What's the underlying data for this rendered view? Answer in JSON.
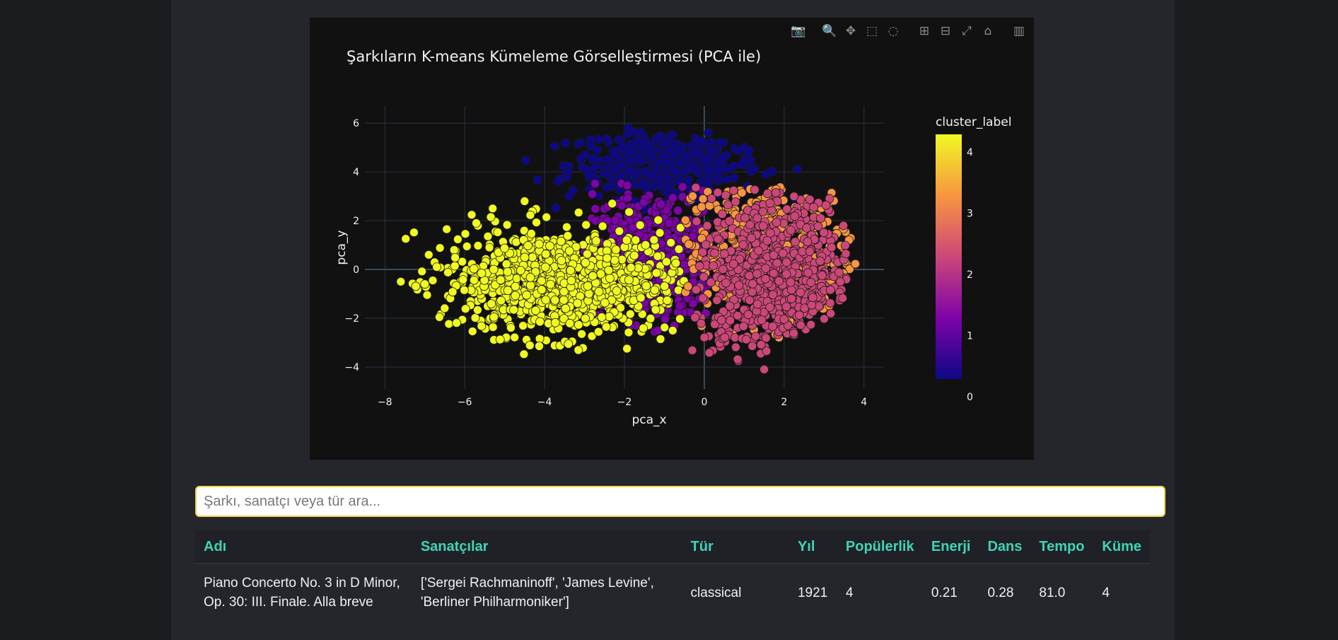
{
  "plot": {
    "title": "Şarkıların K-means Kümeleme Görselleştirmesi (PCA ile)",
    "modebar": [
      {
        "name": "camera-icon",
        "glyph": "📷"
      },
      {
        "name": "zoom-icon",
        "glyph": "🔍"
      },
      {
        "name": "pan-icon",
        "glyph": "✥"
      },
      {
        "name": "box-select-icon",
        "glyph": "⬚"
      },
      {
        "name": "lasso-select-icon",
        "glyph": "◌"
      },
      {
        "name": "zoom-in-icon",
        "glyph": "⊞"
      },
      {
        "name": "zoom-out-icon",
        "glyph": "⊟"
      },
      {
        "name": "autoscale-icon",
        "glyph": "⤢"
      },
      {
        "name": "reset-axes-icon",
        "glyph": "⌂"
      },
      {
        "name": "plotly-logo-icon",
        "glyph": "▥"
      }
    ]
  },
  "chart_data": {
    "type": "scatter",
    "title": "Şarkıların K-means Kümeleme Görselleştirmesi (PCA ile)",
    "xlabel": "pca_x",
    "ylabel": "pca_y",
    "xlim": [
      -8.5,
      4.5
    ],
    "ylim": [
      -4.9,
      6.7
    ],
    "xticks": [
      -8,
      -6,
      -4,
      -2,
      0,
      2,
      4
    ],
    "yticks": [
      -4,
      -2,
      0,
      2,
      4,
      6
    ],
    "xtick_labels": [
      "−8",
      "−6",
      "−4",
      "−2",
      "0",
      "2",
      "4"
    ],
    "ytick_labels": [
      "−4",
      "−2",
      "0",
      "2",
      "4",
      "6"
    ],
    "grid": true,
    "colorbar": {
      "title": "cluster_label",
      "range": [
        0,
        4
      ],
      "ticks": [
        "0",
        "1",
        "2",
        "3",
        "4"
      ],
      "colorscale": [
        "#0d0887",
        "#7e03a8",
        "#cc4778",
        "#f89540",
        "#f0f921"
      ]
    },
    "clusters": [
      {
        "label": 0,
        "color": "#0d0887",
        "center": [
          -1.0,
          4.3
        ],
        "spread": [
          1.2,
          0.7
        ],
        "n": 420
      },
      {
        "label": 1,
        "color": "#7e03a8",
        "center": [
          -1.3,
          0.6
        ],
        "spread": [
          0.9,
          1.3
        ],
        "n": 520
      },
      {
        "label": 2,
        "color": "#cc4778",
        "center": [
          1.8,
          -0.4
        ],
        "spread": [
          1.0,
          1.7
        ],
        "n": 650
      },
      {
        "label": 3,
        "color": "#f89540",
        "center": [
          1.6,
          0.8
        ],
        "spread": [
          1.1,
          1.6
        ],
        "n": 420
      },
      {
        "label": 4,
        "color": "#f0f921",
        "center": [
          -3.6,
          -0.5
        ],
        "spread": [
          1.5,
          1.1
        ],
        "n": 900
      }
    ],
    "outliers": [
      [
        -7.6,
        -0.5
      ],
      [
        -6.9,
        0.6
      ],
      [
        -7.0,
        -0.6
      ],
      [
        -6.8,
        -0.45
      ],
      [
        -6.7,
        0.1
      ],
      [
        -5.3,
        2.5
      ],
      [
        -4.5,
        2.8
      ],
      [
        -1.9,
        5.8
      ],
      [
        0.1,
        5.6
      ],
      [
        1.1,
        4.8
      ],
      [
        1.5,
        -4.1
      ]
    ]
  },
  "search": {
    "placeholder": "Şarkı, sanatçı veya tür ara..."
  },
  "table": {
    "headers": [
      "Adı",
      "Sanatçılar",
      "Tür",
      "Yıl",
      "Popülerlik",
      "Enerji",
      "Dans",
      "Tempo",
      "Küme"
    ],
    "rows": [
      {
        "name": "Piano Concerto No. 3 in D Minor, Op. 30: III. Finale. Alla breve",
        "artists": "['Sergei Rachmaninoff', 'James Levine', 'Berliner Philharmoniker']",
        "genre": "classical",
        "year": "1921",
        "popularity": "4",
        "energy": "0.21",
        "dance": "0.28",
        "tempo": "81.0",
        "cluster": "4"
      }
    ]
  }
}
